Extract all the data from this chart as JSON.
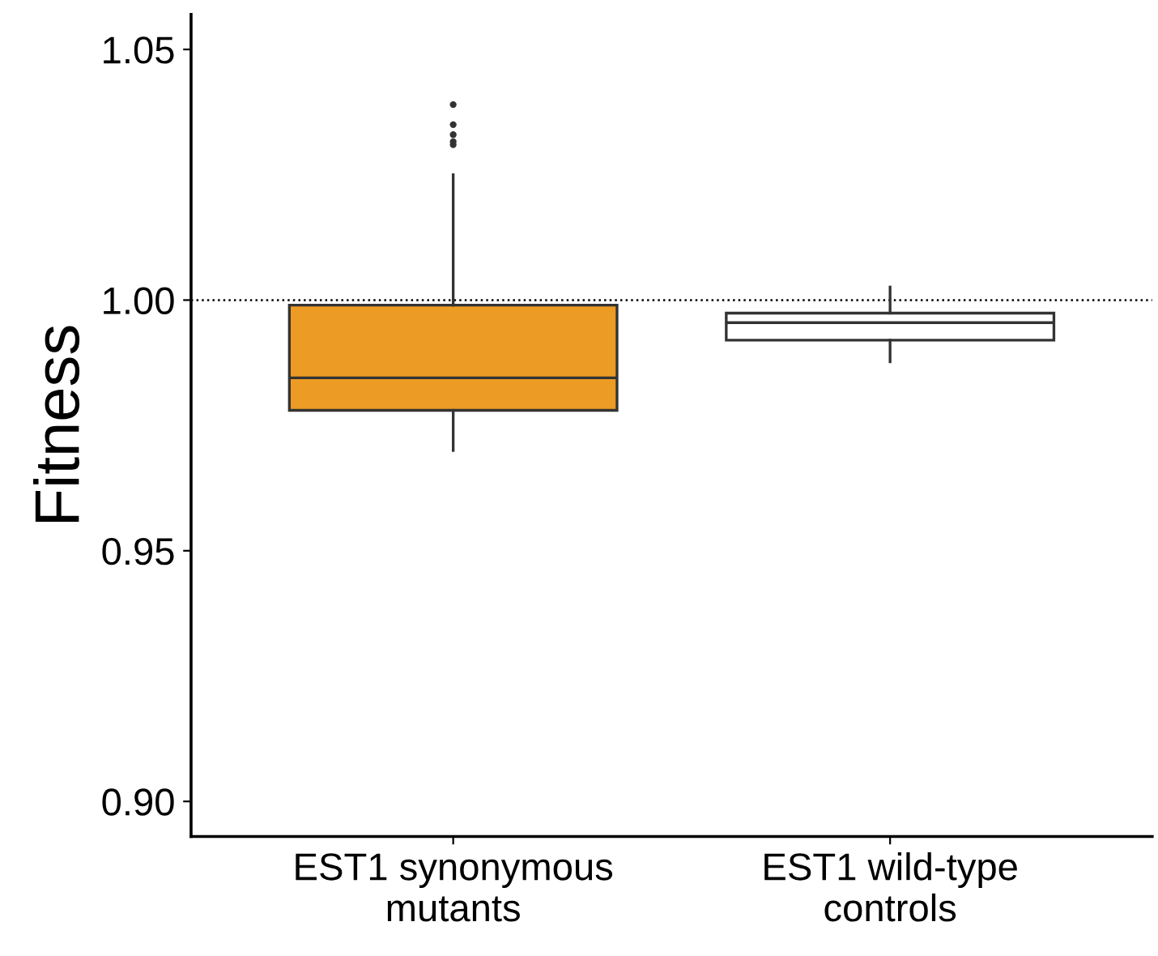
{
  "chart_data": {
    "type": "box",
    "ylabel": "Fitness",
    "categories": [
      "EST1 synonymous\nmutants",
      "EST1 wild-type\ncontrols"
    ],
    "boxes": [
      {
        "low": 0.97,
        "q1": 0.978,
        "median": 0.9845,
        "q3": 0.999,
        "high": 1.025,
        "outliers": [
          1.031,
          1.0316,
          1.033,
          1.035,
          1.039
        ]
      },
      {
        "low": 0.9877,
        "q1": 0.992,
        "median": 0.9955,
        "q3": 0.9974,
        "high": 1.0026
      }
    ],
    "colors": [
      "#ec9b24",
      "#ffffff"
    ],
    "ylim": [
      0.893,
      1.057
    ],
    "yticks": [
      {
        "value": 0.9,
        "label": "0.90"
      },
      {
        "value": 0.95,
        "label": "0.95"
      },
      {
        "value": 1.0,
        "label": "1.00"
      },
      {
        "value": 1.05,
        "label": "1.05"
      }
    ],
    "ref_lines": [
      {
        "axis": "y",
        "value": 1.0,
        "line_style": "dotted"
      }
    ],
    "grid": false,
    "legend": false
  }
}
